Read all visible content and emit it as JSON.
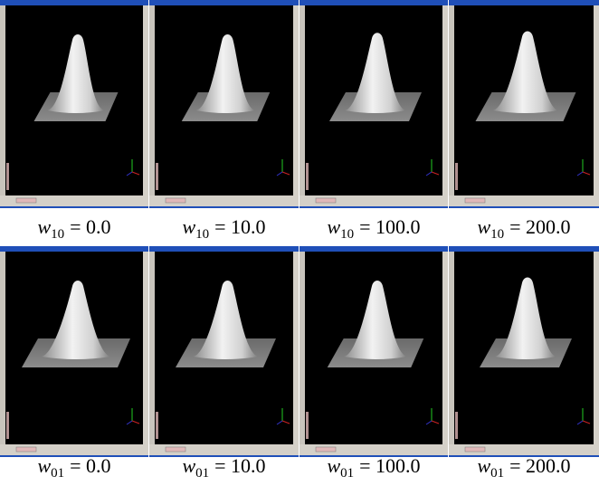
{
  "figure": {
    "rows": [
      {
        "captions": [
          {
            "symbol": "w",
            "subscript": "10",
            "value": "= 0.0"
          },
          {
            "symbol": "w",
            "subscript": "10",
            "value": "= 10.0"
          },
          {
            "symbol": "w",
            "subscript": "10",
            "value": "= 100.0"
          },
          {
            "symbol": "w",
            "subscript": "10",
            "value": "= 200.0"
          }
        ]
      },
      {
        "captions": [
          {
            "symbol": "w",
            "subscript": "01",
            "value": "= 0.0"
          },
          {
            "symbol": "w",
            "subscript": "01",
            "value": "= 10.0"
          },
          {
            "symbol": "w",
            "subscript": "01",
            "value": "= 100.0"
          },
          {
            "symbol": "w",
            "subscript": "01",
            "value": "= 200.0"
          }
        ]
      }
    ]
  }
}
